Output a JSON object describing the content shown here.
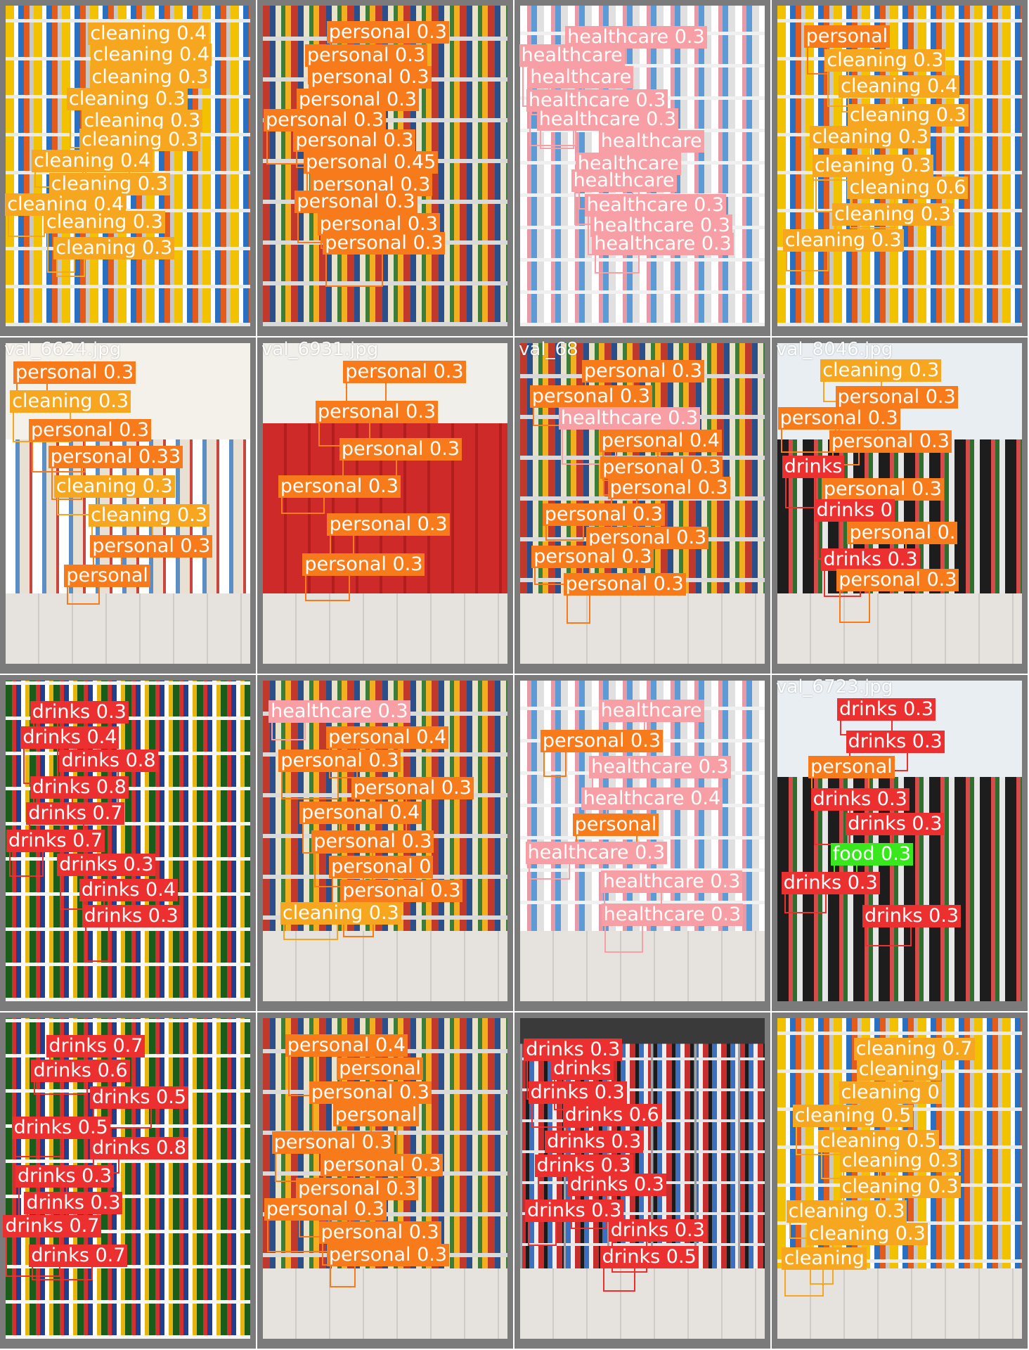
{
  "palette": {
    "personal": "#f87b1b",
    "cleaning": "#f6a61f",
    "healthcare": "#f79fa5",
    "drinks": "#ec3030",
    "food": "#38e81d"
  },
  "tiles": [
    {
      "name": "",
      "scene": "ph-clean",
      "labels": [
        {
          "text": "cleaning 0.4",
          "cls": "cleaning"
        },
        {
          "text": "cleaning 0.4",
          "cls": "cleaning"
        },
        {
          "text": "cleaning 0.3",
          "cls": "cleaning"
        },
        {
          "text": "cleaning 0.3",
          "cls": "cleaning"
        },
        {
          "text": "cleaning 0.3",
          "cls": "cleaning"
        },
        {
          "text": "cleaning 0.3",
          "cls": "cleaning"
        },
        {
          "text": "cleaning 0.4",
          "cls": "cleaning"
        },
        {
          "text": "cleaning 0.3",
          "cls": "cleaning"
        },
        {
          "text": "cleaning 0.4",
          "cls": "cleaning"
        },
        {
          "text": "cleaning 0.3",
          "cls": "cleaning"
        },
        {
          "text": "cleaning 0.3",
          "cls": "cleaning"
        }
      ]
    },
    {
      "name": "",
      "scene": "ph-shelf",
      "labels": [
        {
          "text": "personal 0.3",
          "cls": "personal"
        },
        {
          "text": "personal 0.3",
          "cls": "personal"
        },
        {
          "text": "personal 0.3",
          "cls": "personal"
        },
        {
          "text": "personal 0.3",
          "cls": "personal"
        },
        {
          "text": "personal 0.3",
          "cls": "personal"
        },
        {
          "text": "personal 0.3",
          "cls": "personal"
        },
        {
          "text": "personal 0.45",
          "cls": "personal"
        },
        {
          "text": "personal 0.3",
          "cls": "personal"
        },
        {
          "text": "personal 0.3",
          "cls": "personal"
        },
        {
          "text": "personal 0.3",
          "cls": "personal"
        },
        {
          "text": "personal 0.3",
          "cls": "personal"
        }
      ]
    },
    {
      "name": "",
      "scene": "ph-pink",
      "labels": [
        {
          "text": "healthcare 0.3",
          "cls": "healthcare"
        },
        {
          "text": "healthcare",
          "cls": "healthcare"
        },
        {
          "text": "healthcare",
          "cls": "healthcare"
        },
        {
          "text": "healthcare 0.3",
          "cls": "healthcare"
        },
        {
          "text": "healthcare 0.3",
          "cls": "healthcare"
        },
        {
          "text": "healthcare",
          "cls": "healthcare"
        },
        {
          "text": "healthcare",
          "cls": "healthcare"
        },
        {
          "text": "healthcare",
          "cls": "healthcare"
        },
        {
          "text": "healthcare 0.3",
          "cls": "healthcare"
        },
        {
          "text": "healthcare 0.3",
          "cls": "healthcare"
        },
        {
          "text": "healthcare 0.3",
          "cls": "healthcare"
        }
      ]
    },
    {
      "name": "",
      "scene": "ph-clean",
      "labels": [
        {
          "text": "personal",
          "cls": "personal"
        },
        {
          "text": "cleaning 0.3",
          "cls": "cleaning"
        },
        {
          "text": "cleaning 0.4",
          "cls": "cleaning"
        },
        {
          "text": "cleaning 0.3",
          "cls": "cleaning"
        },
        {
          "text": "cleaning 0.3",
          "cls": "cleaning"
        },
        {
          "text": "cleaning 0.3",
          "cls": "cleaning"
        },
        {
          "text": "cleaning 0.6",
          "cls": "cleaning"
        },
        {
          "text": "cleaning 0.3",
          "cls": "cleaning"
        },
        {
          "text": "cleaning 0.3",
          "cls": "cleaning"
        }
      ]
    },
    {
      "name": "val_6624.jpg",
      "scene": "ph-aisle ph-floor",
      "labels": [
        {
          "text": "personal 0.3",
          "cls": "personal"
        },
        {
          "text": "cleaning 0.3",
          "cls": "cleaning"
        },
        {
          "text": "personal 0.3",
          "cls": "personal"
        },
        {
          "text": "personal 0.33",
          "cls": "personal"
        },
        {
          "text": "cleaning 0.3",
          "cls": "cleaning"
        },
        {
          "text": "cleaning 0.3",
          "cls": "cleaning"
        },
        {
          "text": "personal 0.3",
          "cls": "personal"
        },
        {
          "text": "personal",
          "cls": "personal"
        }
      ]
    },
    {
      "name": "val_6931.jpg",
      "scene": "ph-red ph-floor",
      "labels": [
        {
          "text": "personal 0.3",
          "cls": "personal"
        },
        {
          "text": "personal 0.3",
          "cls": "personal"
        },
        {
          "text": "personal 0.3",
          "cls": "personal"
        },
        {
          "text": "personal 0.3",
          "cls": "personal"
        },
        {
          "text": "personal 0.3",
          "cls": "personal"
        },
        {
          "text": "personal 0.3",
          "cls": "personal"
        }
      ]
    },
    {
      "name": "val_68",
      "scene": "ph-shelf ph-floor",
      "labels": [
        {
          "text": "personal 0.3",
          "cls": "personal"
        },
        {
          "text": "personal 0.3",
          "cls": "personal"
        },
        {
          "text": "healthcare 0.3",
          "cls": "healthcare"
        },
        {
          "text": "personal 0.4",
          "cls": "personal"
        },
        {
          "text": "personal 0.3",
          "cls": "personal"
        },
        {
          "text": "personal 0.3",
          "cls": "personal"
        },
        {
          "text": "personal 0.3",
          "cls": "personal"
        },
        {
          "text": "personal 0.3",
          "cls": "personal"
        },
        {
          "text": "personal 0.3",
          "cls": "personal"
        },
        {
          "text": "personal 0.3",
          "cls": "personal"
        }
      ]
    },
    {
      "name": "val_8046.jpg",
      "scene": "ph-dark ph-floor",
      "labels": [
        {
          "text": "cleaning 0.3",
          "cls": "cleaning"
        },
        {
          "text": "personal 0.3",
          "cls": "personal"
        },
        {
          "text": "personal 0.3",
          "cls": "personal"
        },
        {
          "text": "personal 0.3",
          "cls": "personal"
        },
        {
          "text": "drinks",
          "cls": "drinks"
        },
        {
          "text": "personal 0.3",
          "cls": "personal"
        },
        {
          "text": "drinks 0",
          "cls": "drinks"
        },
        {
          "text": "personal 0.",
          "cls": "personal"
        },
        {
          "text": "drinks 0.3",
          "cls": "drinks"
        },
        {
          "text": "personal 0.3",
          "cls": "personal"
        }
      ]
    },
    {
      "name": "",
      "scene": "ph-drinks",
      "labels": [
        {
          "text": "drinks 0.3",
          "cls": "drinks"
        },
        {
          "text": "drinks 0.4",
          "cls": "drinks"
        },
        {
          "text": "drinks 0.8",
          "cls": "drinks"
        },
        {
          "text": "drinks 0.8",
          "cls": "drinks"
        },
        {
          "text": "drinks 0.7",
          "cls": "drinks"
        },
        {
          "text": "drinks 0.7",
          "cls": "drinks"
        },
        {
          "text": "drinks 0.3",
          "cls": "drinks"
        },
        {
          "text": "drinks 0.4",
          "cls": "drinks"
        },
        {
          "text": "drinks 0.3",
          "cls": "drinks"
        }
      ]
    },
    {
      "name": "",
      "scene": "ph-shelf ph-floor",
      "labels": [
        {
          "text": "healthcare 0.3",
          "cls": "healthcare"
        },
        {
          "text": "personal 0.4",
          "cls": "personal"
        },
        {
          "text": "personal 0.3",
          "cls": "personal"
        },
        {
          "text": "personal 0.3",
          "cls": "personal"
        },
        {
          "text": "personal 0.4",
          "cls": "personal"
        },
        {
          "text": "personal 0.3",
          "cls": "personal"
        },
        {
          "text": "personal 0",
          "cls": "personal"
        },
        {
          "text": "personal 0.3",
          "cls": "personal"
        },
        {
          "text": "cleaning 0.3",
          "cls": "cleaning"
        }
      ]
    },
    {
      "name": "",
      "scene": "ph-pink ph-floor",
      "labels": [
        {
          "text": "healthcare",
          "cls": "healthcare"
        },
        {
          "text": "personal 0.3",
          "cls": "personal"
        },
        {
          "text": "healthcare 0.3",
          "cls": "healthcare"
        },
        {
          "text": "healthcare 0.4",
          "cls": "healthcare"
        },
        {
          "text": "personal",
          "cls": "personal"
        },
        {
          "text": "healthcare 0.3",
          "cls": "healthcare"
        },
        {
          "text": "healthcare 0.3",
          "cls": "healthcare"
        },
        {
          "text": "healthcare 0.3",
          "cls": "healthcare"
        }
      ]
    },
    {
      "name": "val_6723.jpg",
      "scene": "ph-dark",
      "labels": [
        {
          "text": "drinks 0.3",
          "cls": "drinks"
        },
        {
          "text": "drinks 0.3",
          "cls": "drinks"
        },
        {
          "text": "personal",
          "cls": "personal"
        },
        {
          "text": "drinks 0.3",
          "cls": "drinks"
        },
        {
          "text": "drinks 0.3",
          "cls": "drinks"
        },
        {
          "text": "food 0.3",
          "cls": "food"
        },
        {
          "text": "drinks 0.3",
          "cls": "drinks"
        },
        {
          "text": "drinks 0.3",
          "cls": "drinks"
        }
      ]
    },
    {
      "name": "",
      "scene": "ph-drinks",
      "labels": [
        {
          "text": "drinks 0.7",
          "cls": "drinks"
        },
        {
          "text": "drinks 0.6",
          "cls": "drinks"
        },
        {
          "text": "drinks 0.5",
          "cls": "drinks"
        },
        {
          "text": "drinks 0.5",
          "cls": "drinks"
        },
        {
          "text": "drinks 0.8",
          "cls": "drinks"
        },
        {
          "text": "drinks 0.3",
          "cls": "drinks"
        },
        {
          "text": "drinks 0.3",
          "cls": "drinks"
        },
        {
          "text": "drinks 0.7",
          "cls": "drinks"
        },
        {
          "text": "drinks 0.7",
          "cls": "drinks"
        }
      ]
    },
    {
      "name": "",
      "scene": "ph-shelf ph-floor",
      "labels": [
        {
          "text": "personal 0.4",
          "cls": "personal"
        },
        {
          "text": "personal",
          "cls": "personal"
        },
        {
          "text": "personal 0.3",
          "cls": "personal"
        },
        {
          "text": "personal",
          "cls": "personal"
        },
        {
          "text": "personal 0.3",
          "cls": "personal"
        },
        {
          "text": "personal 0.3",
          "cls": "personal"
        },
        {
          "text": "personal 0.3",
          "cls": "personal"
        },
        {
          "text": "personal 0.3",
          "cls": "personal"
        },
        {
          "text": "personal 0.3",
          "cls": "personal"
        },
        {
          "text": "personal 0.3",
          "cls": "personal"
        }
      ]
    },
    {
      "name": "",
      "scene": "ph-fridge ph-floor",
      "labels": [
        {
          "text": "drinks 0.3",
          "cls": "drinks"
        },
        {
          "text": "drinks",
          "cls": "drinks"
        },
        {
          "text": "drinks 0.3",
          "cls": "drinks"
        },
        {
          "text": "drinks 0.6",
          "cls": "drinks"
        },
        {
          "text": "drinks 0.3",
          "cls": "drinks"
        },
        {
          "text": "drinks 0.3",
          "cls": "drinks"
        },
        {
          "text": "drinks 0.3",
          "cls": "drinks"
        },
        {
          "text": "drinks 0.3",
          "cls": "drinks"
        },
        {
          "text": "drinks 0.3",
          "cls": "drinks"
        },
        {
          "text": "drinks 0.5",
          "cls": "drinks"
        }
      ]
    },
    {
      "name": "",
      "scene": "ph-clean ph-floor",
      "labels": [
        {
          "text": "cleaning 0.7",
          "cls": "cleaning"
        },
        {
          "text": "cleaning",
          "cls": "cleaning"
        },
        {
          "text": "cleaning 0",
          "cls": "cleaning"
        },
        {
          "text": "cleaning 0.5",
          "cls": "cleaning"
        },
        {
          "text": "cleaning 0.5",
          "cls": "cleaning"
        },
        {
          "text": "cleaning 0.3",
          "cls": "cleaning"
        },
        {
          "text": "cleaning 0.3",
          "cls": "cleaning"
        },
        {
          "text": "cleaning 0.3",
          "cls": "cleaning"
        },
        {
          "text": "cleaning 0.3",
          "cls": "cleaning"
        },
        {
          "text": "cleaning",
          "cls": "cleaning"
        }
      ]
    }
  ]
}
